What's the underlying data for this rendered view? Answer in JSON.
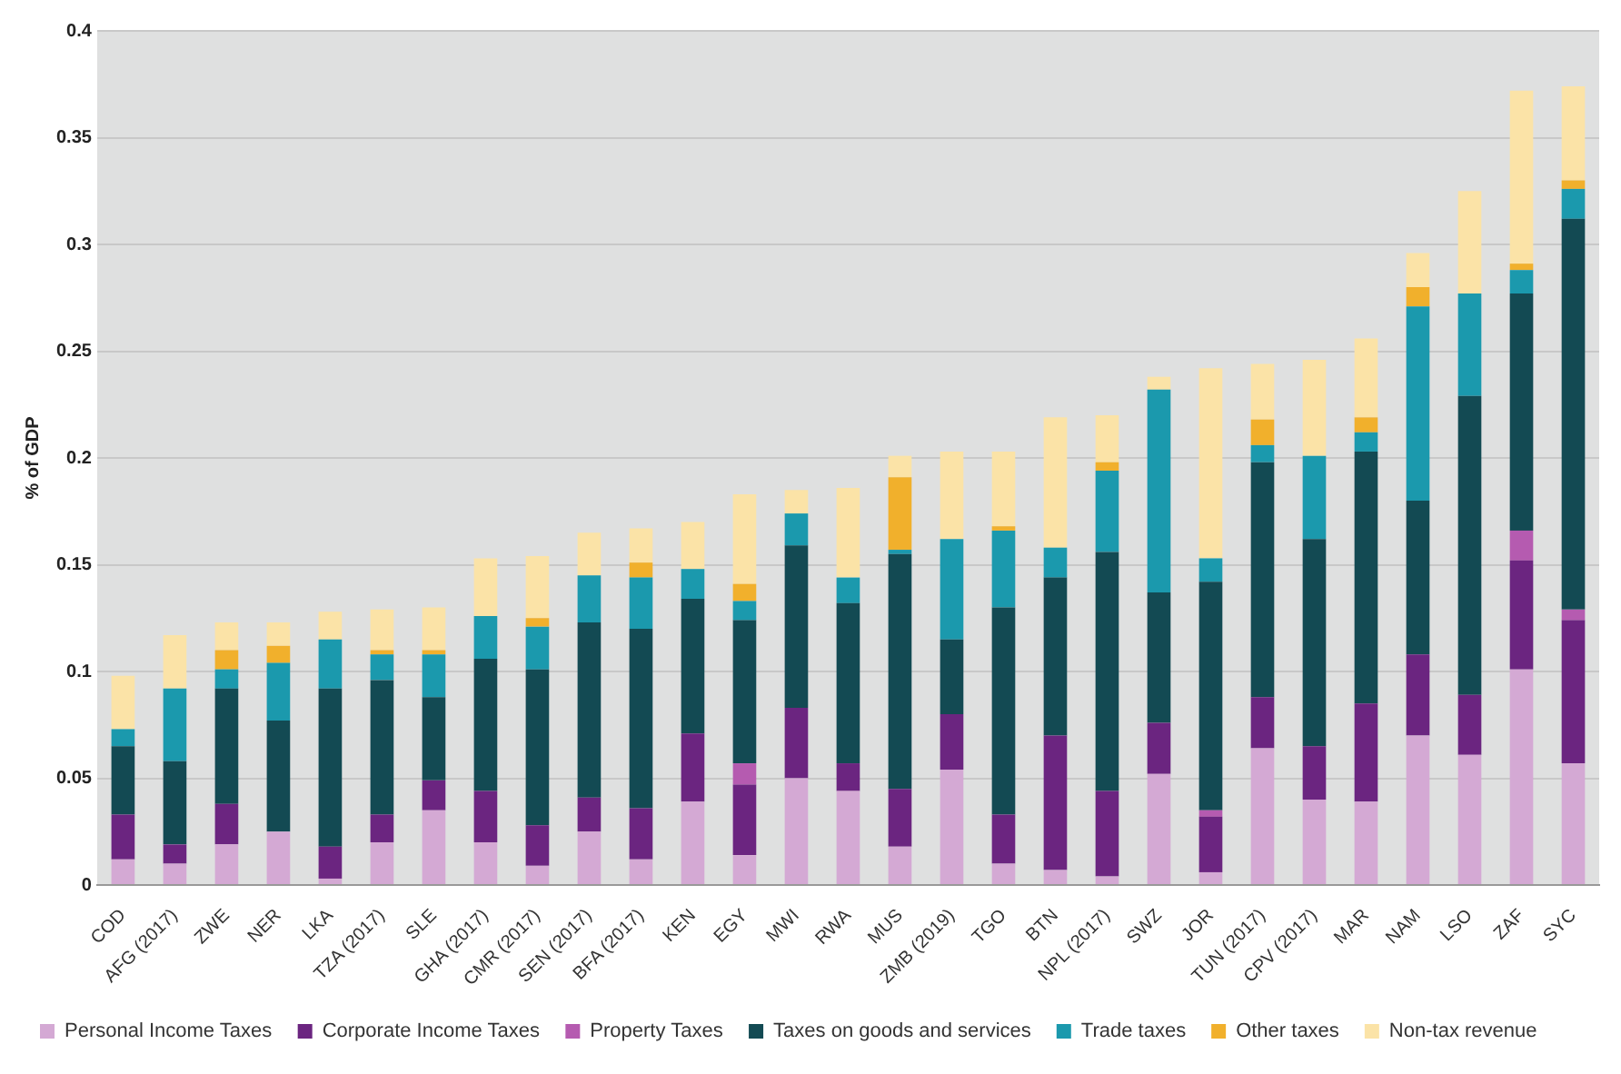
{
  "chart_data": {
    "type": "bar",
    "stacked": true,
    "ylabel": "% of GDP",
    "categories": [
      "COD",
      "AFG (2017)",
      "ZWE",
      "NER",
      "LKA",
      "TZA (2017)",
      "SLE",
      "GHA (2017)",
      "CMR (2017)",
      "SEN (2017)",
      "BFA (2017)",
      "KEN",
      "EGY",
      "MWI",
      "RWA",
      "MUS",
      "ZMB (2019)",
      "TGO",
      "BTN",
      "NPL (2017)",
      "SWZ",
      "JOR",
      "TUN (2017)",
      "CPV (2017)",
      "MAR",
      "NAM",
      "LSO",
      "ZAF",
      "SYC"
    ],
    "ylim": [
      0,
      0.4
    ],
    "yticks": [
      0,
      0.05,
      0.1,
      0.15,
      0.2,
      0.25,
      0.3,
      0.35,
      0.4
    ],
    "grid": "y",
    "legend": "bottom",
    "series": [
      {
        "name": "Personal Income Taxes",
        "color": "#d4a9d4",
        "values": [
          0.012,
          0.01,
          0.019,
          0.025,
          0.003,
          0.02,
          0.035,
          0.02,
          0.009,
          0.025,
          0.012,
          0.039,
          0.014,
          0.05,
          0.044,
          0.018,
          0.054,
          0.01,
          0.007,
          0.004,
          0.052,
          0.006,
          0.064,
          0.04,
          0.039,
          0.07,
          0.061,
          0.101,
          0.057
        ]
      },
      {
        "name": "Corporate Income Taxes",
        "color": "#6b2580",
        "values": [
          0.021,
          0.009,
          0.019,
          0,
          0.015,
          0.013,
          0.014,
          0.024,
          0.019,
          0.016,
          0.024,
          0.032,
          0.033,
          0.033,
          0.013,
          0.027,
          0.026,
          0.023,
          0.063,
          0.04,
          0.024,
          0.026,
          0.024,
          0.025,
          0.046,
          0.038,
          0.028,
          0.051,
          0.067
        ]
      },
      {
        "name": "Property Taxes",
        "color": "#b55bb0",
        "values": [
          0,
          0,
          0,
          0,
          0,
          0,
          0,
          0,
          0,
          0,
          0,
          0,
          0.01,
          0,
          0,
          0,
          0,
          0,
          0,
          0,
          0,
          0.003,
          0,
          0,
          0,
          0,
          0,
          0.014,
          0.005
        ]
      },
      {
        "name": "Taxes on goods and services",
        "color": "#134a53",
        "values": [
          0.032,
          0.039,
          0.054,
          0.052,
          0.074,
          0.063,
          0.039,
          0.062,
          0.073,
          0.082,
          0.084,
          0.063,
          0.067,
          0.076,
          0.075,
          0.11,
          0.035,
          0.097,
          0.074,
          0.112,
          0.061,
          0.107,
          0.11,
          0.097,
          0.118,
          0.072,
          0.14,
          0.111,
          0.183
        ]
      },
      {
        "name": "Trade taxes",
        "color": "#1b99ad",
        "values": [
          0.008,
          0.034,
          0.009,
          0.027,
          0.023,
          0.012,
          0.02,
          0.02,
          0.02,
          0.022,
          0.024,
          0.014,
          0.009,
          0.015,
          0.012,
          0.002,
          0.047,
          0.036,
          0.014,
          0.038,
          0.095,
          0.011,
          0.008,
          0.039,
          0.009,
          0.091,
          0.048,
          0.011,
          0.014
        ]
      },
      {
        "name": "Other taxes",
        "color": "#f1b02c",
        "values": [
          0,
          0,
          0.009,
          0.008,
          0,
          0.002,
          0.002,
          0,
          0.004,
          0,
          0.007,
          0,
          0.008,
          0,
          0,
          0.034,
          0,
          0.002,
          0,
          0.004,
          0,
          0,
          0.012,
          0,
          0.007,
          0.009,
          0,
          0.003,
          0.004
        ]
      },
      {
        "name": "Non-tax revenue",
        "color": "#fbe3a7",
        "values": [
          0.025,
          0.025,
          0.013,
          0.011,
          0.013,
          0.019,
          0.02,
          0.027,
          0.029,
          0.02,
          0.016,
          0.022,
          0.042,
          0.011,
          0.042,
          0.01,
          0.041,
          0.035,
          0.061,
          0.022,
          0.006,
          0.089,
          0.026,
          0.045,
          0.037,
          0.016,
          0.048,
          0.081,
          0.044
        ]
      }
    ]
  }
}
